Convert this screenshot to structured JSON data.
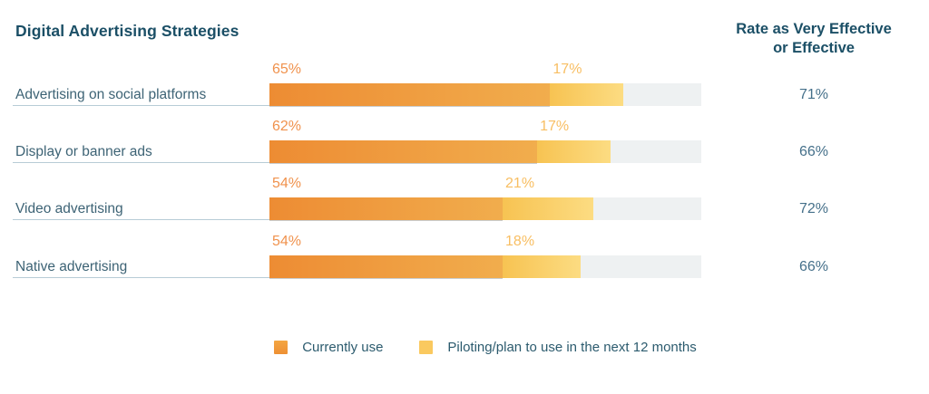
{
  "header": {
    "title": "Digital Advertising Strategies",
    "rate_line1": "Rate as Very Effective",
    "rate_line2": "or Effective"
  },
  "rows": [
    {
      "label": "Advertising on social platforms",
      "use": 65,
      "pilot": 17,
      "use_label": "65%",
      "pilot_label": "17%",
      "rate_label": "71%"
    },
    {
      "label": "Display or banner ads",
      "use": 62,
      "pilot": 17,
      "use_label": "62%",
      "pilot_label": "17%",
      "rate_label": "66%"
    },
    {
      "label": "Video advertising",
      "use": 54,
      "pilot": 21,
      "use_label": "54%",
      "pilot_label": "21%",
      "rate_label": "72%"
    },
    {
      "label": "Native advertising",
      "use": 54,
      "pilot": 18,
      "use_label": "54%",
      "pilot_label": "18%",
      "rate_label": "66%"
    }
  ],
  "legend": {
    "currently": "Currently use",
    "piloting": "Piloting/plan to use in the next 12 months"
  },
  "colors": {
    "title_color": "#1B4F66",
    "label_color": "#3D6375",
    "value_color": "#45708A",
    "legend_text_color": "#2C5B6E",
    "underline_color": "#B7CCD6",
    "track_color": "#EEF1F2",
    "orange_start": "#ED8C33",
    "orange_end": "#F1AD4D",
    "yellow_start": "#F7C352",
    "yellow_end": "#FCDC82",
    "use_label_color": "#F0924D",
    "pilot_label_color": "#F8BE62",
    "legend_orange_top": "#F4A643",
    "legend_orange_bottom": "#EE9033",
    "legend_yellow": "#FAC95F"
  },
  "chart_data": {
    "type": "bar",
    "orientation": "horizontal",
    "stacked": true,
    "title": "Digital Advertising Strategies",
    "categories": [
      "Advertising on social platforms",
      "Display or banner ads",
      "Video advertising",
      "Native advertising"
    ],
    "series": [
      {
        "name": "Currently use",
        "values": [
          65,
          62,
          54,
          54
        ]
      },
      {
        "name": "Piloting/plan to use in the next 12 months",
        "values": [
          17,
          17,
          21,
          18
        ]
      }
    ],
    "secondary_column": {
      "header": "Rate as Very Effective or Effective",
      "values_pct": [
        71,
        66,
        72,
        66
      ]
    },
    "xlim": [
      0,
      100
    ],
    "grid": false,
    "legend_position": "bottom",
    "value_labels": "above-segment-start"
  }
}
